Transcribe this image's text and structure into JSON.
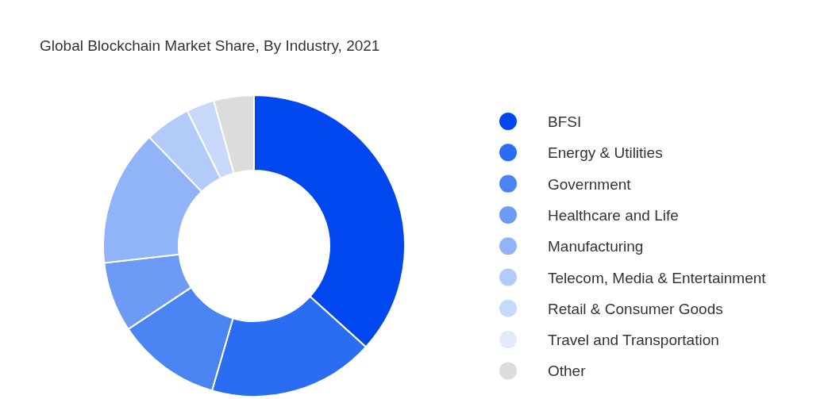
{
  "chart_data": {
    "type": "donut",
    "title": "Global Blockchain Market Share, By Industry, 2021",
    "categories": [
      "BFSI",
      "Energy & Utilities",
      "Government",
      "Healthcare and Life",
      "Manufacturing",
      "Telecom, Media & Entertainment",
      "Retail & Consumer Goods",
      "Travel and Transportation",
      "Other"
    ],
    "values": [
      36.7,
      17.8,
      11.2,
      7.5,
      14.6,
      4.9,
      3.0,
      0,
      4.3
    ],
    "colors": [
      "#0047f0",
      "#2a6cf2",
      "#4a84f3",
      "#6d9af5",
      "#91b3f7",
      "#b3cbf9",
      "#c7d8fa",
      "#e2eafc",
      "#dcdcdc"
    ],
    "legend": "right"
  }
}
